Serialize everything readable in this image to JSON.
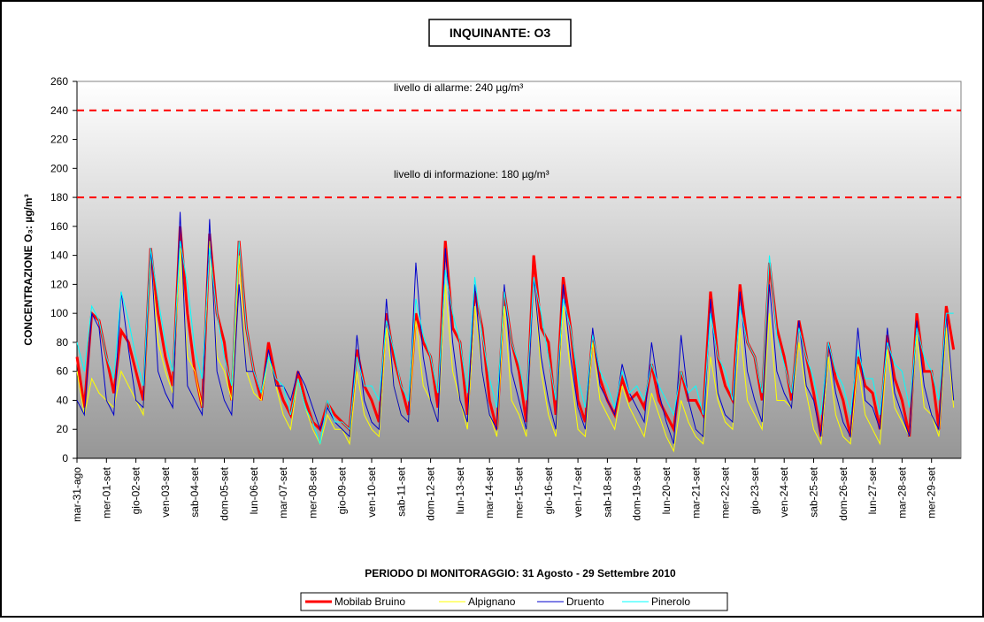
{
  "chart_data": {
    "type": "line",
    "title": "INQUINANTE: O3",
    "y_label": "CONCENTRAZIONE O₃: µg/m³",
    "x_label": "PERIODO DI MONITORAGGIO: 31 Agosto - 29 Settembre 2010",
    "ylim": [
      0,
      260
    ],
    "yticks": [
      0,
      20,
      40,
      60,
      80,
      100,
      120,
      140,
      160,
      180,
      200,
      220,
      240,
      260
    ],
    "hlines": [
      {
        "value": 240,
        "label": "livello di allarme: 240 µg/m³",
        "color": "#ff0000"
      },
      {
        "value": 180,
        "label": "livello di informazione: 180 µg/m³",
        "color": "#ff0000"
      }
    ],
    "categories": [
      "mar-31-ago",
      null,
      null,
      null,
      "mer-01-set",
      null,
      null,
      null,
      "gio-02-set",
      null,
      null,
      null,
      "ven-03-set",
      null,
      null,
      null,
      "sab-04-set",
      null,
      null,
      null,
      "dom-05-set",
      null,
      null,
      null,
      "lun-06-set",
      null,
      null,
      null,
      "mar-07-set",
      null,
      null,
      null,
      "mer-08-set",
      null,
      null,
      null,
      "gio-09-set",
      null,
      null,
      null,
      "ven-10-set",
      null,
      null,
      null,
      "sab-11-set",
      null,
      null,
      null,
      "dom-12-set",
      null,
      null,
      null,
      "lun-13-set",
      null,
      null,
      null,
      "mar-14-set",
      null,
      null,
      null,
      "mer-15-set",
      null,
      null,
      null,
      "gio-16-set",
      null,
      null,
      null,
      "ven-17-set",
      null,
      null,
      null,
      "sab-18-set",
      null,
      null,
      null,
      "dom-19-set",
      null,
      null,
      null,
      "lun-20-set",
      null,
      null,
      null,
      "mar-21-set",
      null,
      null,
      null,
      "mer-22-set",
      null,
      null,
      null,
      "gio-23-set",
      null,
      null,
      null,
      "ven-24-set",
      null,
      null,
      null,
      "sab-25-set",
      null,
      null,
      null,
      "dom-26-set",
      null,
      null,
      null,
      "lun-27-set",
      null,
      null,
      null,
      "mar-28-set",
      null,
      null,
      null,
      "mer-29-set",
      null,
      null,
      null
    ],
    "series": [
      {
        "name": "Mobilab Bruino",
        "color": "#ff0000",
        "width": 3,
        "values": [
          70,
          35,
          100,
          95,
          70,
          45,
          88,
          80,
          60,
          40,
          145,
          100,
          70,
          50,
          160,
          100,
          60,
          35,
          155,
          100,
          80,
          40,
          150,
          90,
          60,
          40,
          80,
          55,
          40,
          30,
          60,
          40,
          25,
          20,
          38,
          30,
          25,
          20,
          75,
          50,
          40,
          25,
          100,
          70,
          50,
          30,
          100,
          80,
          70,
          35,
          150,
          90,
          80,
          30,
          115,
          90,
          40,
          20,
          115,
          80,
          60,
          25,
          140,
          90,
          80,
          30,
          125,
          90,
          40,
          25,
          85,
          55,
          40,
          30,
          55,
          40,
          45,
          35,
          65,
          40,
          30,
          20,
          60,
          40,
          40,
          30,
          115,
          70,
          50,
          40,
          120,
          80,
          70,
          40,
          135,
          90,
          70,
          40,
          95,
          70,
          45,
          15,
          80,
          55,
          40,
          15,
          70,
          50,
          45,
          20,
          85,
          55,
          40,
          15,
          100,
          60,
          60,
          20,
          105,
          75
        ]
      },
      {
        "name": "Alpignano",
        "color": "#ffff00",
        "width": 1,
        "values": [
          60,
          30,
          55,
          45,
          40,
          35,
          60,
          50,
          40,
          30,
          140,
          80,
          60,
          45,
          145,
          70,
          60,
          35,
          150,
          70,
          60,
          40,
          140,
          60,
          45,
          40,
          70,
          50,
          30,
          20,
          55,
          35,
          20,
          10,
          30,
          20,
          20,
          10,
          60,
          30,
          20,
          15,
          90,
          50,
          30,
          25,
          95,
          50,
          40,
          25,
          120,
          60,
          40,
          20,
          105,
          60,
          30,
          15,
          105,
          40,
          30,
          15,
          125,
          60,
          30,
          15,
          105,
          60,
          20,
          15,
          80,
          40,
          30,
          20,
          50,
          35,
          25,
          15,
          45,
          30,
          15,
          5,
          40,
          25,
          15,
          10,
          70,
          40,
          25,
          20,
          90,
          40,
          30,
          20,
          100,
          40,
          40,
          35,
          80,
          45,
          20,
          10,
          70,
          30,
          15,
          10,
          65,
          30,
          20,
          10,
          75,
          35,
          25,
          15,
          85,
          35,
          30,
          15,
          90,
          35
        ]
      },
      {
        "name": "Druento",
        "color": "#0000cc",
        "width": 1,
        "values": [
          40,
          30,
          100,
          90,
          40,
          30,
          115,
          75,
          40,
          35,
          145,
          60,
          45,
          35,
          170,
          50,
          40,
          30,
          165,
          60,
          40,
          30,
          120,
          60,
          60,
          45,
          75,
          50,
          50,
          40,
          60,
          50,
          35,
          20,
          35,
          25,
          20,
          15,
          85,
          40,
          25,
          20,
          110,
          50,
          30,
          25,
          135,
          70,
          40,
          25,
          145,
          80,
          40,
          25,
          120,
          60,
          30,
          20,
          120,
          60,
          40,
          20,
          125,
          70,
          40,
          20,
          120,
          70,
          35,
          20,
          90,
          50,
          40,
          30,
          65,
          45,
          35,
          25,
          80,
          45,
          25,
          10,
          85,
          40,
          20,
          15,
          110,
          45,
          30,
          25,
          115,
          60,
          40,
          25,
          120,
          60,
          45,
          35,
          95,
          50,
          40,
          15,
          80,
          45,
          25,
          15,
          90,
          40,
          35,
          20,
          90,
          45,
          30,
          15,
          95,
          50,
          30,
          20,
          100,
          40
        ]
      },
      {
        "name": "Pinerolo",
        "color": "#00ffff",
        "width": 1,
        "values": [
          80,
          60,
          105,
          95,
          70,
          55,
          115,
          95,
          70,
          50,
          145,
          110,
          80,
          60,
          150,
          120,
          75,
          55,
          145,
          100,
          70,
          50,
          150,
          90,
          60,
          45,
          70,
          55,
          50,
          30,
          55,
          35,
          25,
          10,
          40,
          25,
          25,
          20,
          70,
          50,
          50,
          40,
          95,
          75,
          50,
          40,
          110,
          85,
          70,
          45,
          130,
          100,
          80,
          45,
          125,
          85,
          55,
          35,
          115,
          80,
          65,
          40,
          125,
          100,
          70,
          40,
          110,
          90,
          55,
          35,
          85,
          60,
          50,
          35,
          60,
          45,
          50,
          40,
          65,
          50,
          40,
          30,
          60,
          45,
          50,
          30,
          100,
          70,
          60,
          40,
          105,
          80,
          70,
          45,
          140,
          85,
          65,
          45,
          90,
          70,
          55,
          30,
          80,
          60,
          50,
          30,
          75,
          55,
          55,
          30,
          80,
          65,
          60,
          35,
          90,
          70,
          60,
          40,
          100,
          100
        ]
      }
    ]
  }
}
